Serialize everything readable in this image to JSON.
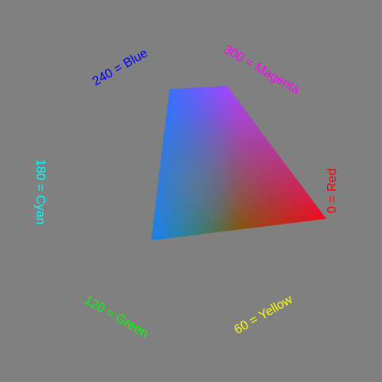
{
  "hue_labels": [
    {
      "text": "0 = Red",
      "color": "#ff0000"
    },
    {
      "text": "60 = Yellow",
      "color": "#ffff00"
    },
    {
      "text": "120 = Green",
      "color": "#00ff00"
    },
    {
      "text": "180 = Cyan",
      "color": "#00ffff"
    },
    {
      "text": "240 = Blue",
      "color": "#0000ff"
    },
    {
      "text": "300 = Magenta",
      "color": "#ff00ff"
    }
  ],
  "quad_vertex_colors": {
    "red": "#ff0000",
    "green": "#00aa00",
    "blue": "#1a7cff",
    "magenta": "#b040ff"
  },
  "background_color": "#808080"
}
